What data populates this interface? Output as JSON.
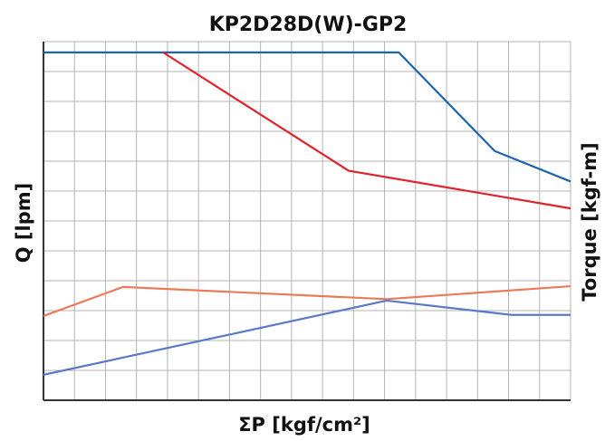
{
  "chart_data": {
    "type": "line",
    "title": "KP2D28D(W)-GP2",
    "xlabel": "ΣP [kgf/cm²]",
    "ylabel": "Q [lpm]",
    "y2label": "Torque [kgf-m]",
    "grid": true,
    "legend": "none",
    "xlim": [
      0,
      100
    ],
    "ylim": [
      0,
      100
    ],
    "series": [
      {
        "color": "#1c64ad",
        "x": [
          0,
          22.7,
          67.4,
          85.6,
          100
        ],
        "y": [
          97,
          97,
          97,
          69.5,
          61
        ]
      },
      {
        "color": "#e0222b",
        "x": [
          22.7,
          57.9,
          100
        ],
        "y": [
          97,
          64,
          53.5
        ]
      },
      {
        "color": "#ec7a5a",
        "x": [
          0,
          15.1,
          65.1,
          100
        ],
        "y": [
          23.5,
          31.6,
          28.2,
          31.8
        ]
      },
      {
        "color": "#5b79c7",
        "x": [
          0,
          65.1,
          88.8,
          100
        ],
        "y": [
          7.1,
          27.8,
          23.8,
          23.8
        ]
      }
    ]
  }
}
